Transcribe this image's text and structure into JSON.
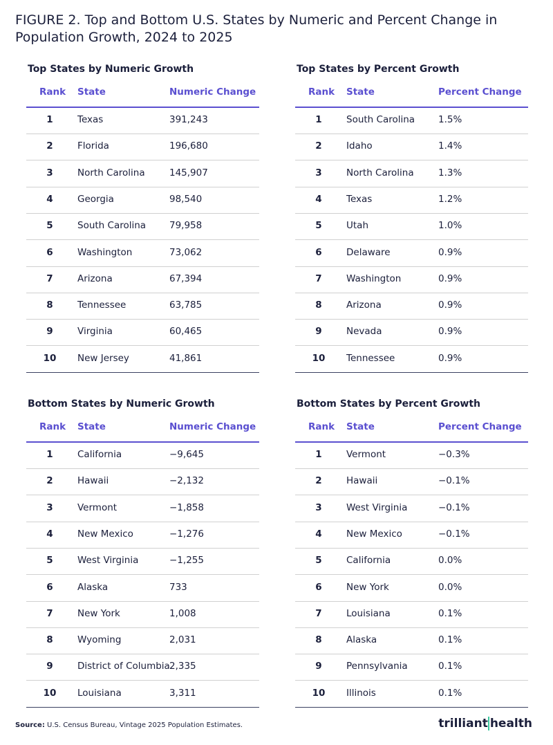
{
  "header": {
    "title_line1": "FIGURE 2. Top and Bottom U.S. States by Numeric and Percent Change in",
    "title_line2": "Population Growth, 2024 to 2025"
  },
  "tables": [
    {
      "title": "Top States by Numeric Growth",
      "columns": [
        "Rank",
        "State",
        "Numeric Change"
      ],
      "rows": [
        [
          1,
          "Texas",
          "391,243"
        ],
        [
          2,
          "Florida",
          "196,680"
        ],
        [
          3,
          "North Carolina",
          "145,907"
        ],
        [
          4,
          "Georgia",
          "98,540"
        ],
        [
          5,
          "South Carolina",
          "79,958"
        ],
        [
          6,
          "Washington",
          "73,062"
        ],
        [
          7,
          "Arizona",
          "67,394"
        ],
        [
          8,
          "Tennessee",
          "63,785"
        ],
        [
          9,
          "Virginia",
          "60,465"
        ],
        [
          10,
          "New Jersey",
          "41,861"
        ]
      ]
    },
    {
      "title": "Top States by Percent Growth",
      "columns": [
        "Rank",
        "State",
        "Percent Change"
      ],
      "rows": [
        [
          1,
          "South Carolina",
          "1.5%"
        ],
        [
          2,
          "Idaho",
          "1.4%"
        ],
        [
          3,
          "North Carolina",
          "1.3%"
        ],
        [
          4,
          "Texas",
          "1.2%"
        ],
        [
          5,
          "Utah",
          "1.0%"
        ],
        [
          6,
          "Delaware",
          "0.9%"
        ],
        [
          7,
          "Washington",
          "0.9%"
        ],
        [
          8,
          "Arizona",
          "0.9%"
        ],
        [
          9,
          "Nevada",
          "0.9%"
        ],
        [
          10,
          "Tennessee",
          "0.9%"
        ]
      ]
    },
    {
      "title": "Bottom States by Numeric Growth",
      "columns": [
        "Rank",
        "State",
        "Numeric Change"
      ],
      "rows": [
        [
          1,
          "California",
          "−9,645"
        ],
        [
          2,
          "Hawaii",
          "−2,132"
        ],
        [
          3,
          "Vermont",
          "−1,858"
        ],
        [
          4,
          "New Mexico",
          "−1,276"
        ],
        [
          5,
          "West Virginia",
          "−1,255"
        ],
        [
          6,
          "Alaska",
          "733"
        ],
        [
          7,
          "New York",
          "1,008"
        ],
        [
          8,
          "Wyoming",
          "2,031"
        ],
        [
          9,
          "District of Columbia",
          "2,335"
        ],
        [
          10,
          "Louisiana",
          "3,311"
        ]
      ]
    },
    {
      "title": "Bottom States by Percent Growth",
      "columns": [
        "Rank",
        "State",
        "Percent Change"
      ],
      "rows": [
        [
          1,
          "Vermont",
          "−0.3%"
        ],
        [
          2,
          "Hawaii",
          "−0.1%"
        ],
        [
          3,
          "West Virginia",
          "−0.1%"
        ],
        [
          4,
          "New Mexico",
          "−0.1%"
        ],
        [
          5,
          "California",
          "0.0%"
        ],
        [
          6,
          "New York",
          "0.0%"
        ],
        [
          7,
          "Louisiana",
          "0.1%"
        ],
        [
          8,
          "Alaska",
          "0.1%"
        ],
        [
          9,
          "Pennsylvania",
          "0.1%"
        ],
        [
          10,
          "Illinois",
          "0.1%"
        ]
      ]
    }
  ],
  "footer": {
    "source_label": "Source:",
    "source_text": "U.S. Census Bureau, Vintage 2025 Population Estimates.",
    "logo_part1": "trilliant",
    "logo_part2": "health"
  }
}
